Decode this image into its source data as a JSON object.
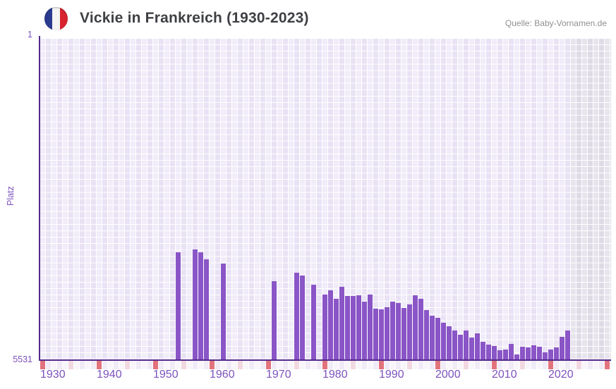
{
  "header": {
    "title": "Vickie in Frankreich (1930-2023)",
    "source": "Quelle: Baby-Vornamen.de"
  },
  "y_axis": {
    "label": "Platz",
    "top_tick": "1",
    "bottom_tick": "5531"
  },
  "chart_data": {
    "type": "bar",
    "title": "Vickie in Frankreich (1930-2023)",
    "xlabel": "",
    "ylabel": "Platz",
    "ylim": [
      1,
      5531
    ],
    "y_axis_inverted": true,
    "y_tick_labels": [
      "1",
      "5531"
    ],
    "x_tick_labels": [
      "1930",
      "1940",
      "1950",
      "1960",
      "1970",
      "1980",
      "1990",
      "2000",
      "2010",
      "2020"
    ],
    "x_rendered_range": [
      1930,
      2030
    ],
    "no_data_region_years": [
      2024,
      2030
    ],
    "decade_tick_years": [
      1930,
      1940,
      1950,
      1960,
      1970,
      1980,
      1990,
      2000,
      2010,
      2020,
      2030
    ],
    "half_decade_tick_years": [
      1935,
      1945,
      1955,
      1965,
      1975,
      1985,
      1995,
      2005,
      2015,
      2025
    ],
    "grid": true,
    "legend": "none",
    "series": [
      {
        "name": "Vickie",
        "points": [
          [
            1954,
            3680
          ],
          [
            1957,
            3635
          ],
          [
            1958,
            3685
          ],
          [
            1959,
            3805
          ],
          [
            1962,
            3880
          ],
          [
            1971,
            4180
          ],
          [
            1975,
            4035
          ],
          [
            1976,
            4085
          ],
          [
            1978,
            4240
          ],
          [
            1980,
            4410
          ],
          [
            1981,
            4340
          ],
          [
            1982,
            4485
          ],
          [
            1983,
            4280
          ],
          [
            1984,
            4435
          ],
          [
            1985,
            4435
          ],
          [
            1986,
            4425
          ],
          [
            1987,
            4535
          ],
          [
            1988,
            4410
          ],
          [
            1989,
            4655
          ],
          [
            1990,
            4670
          ],
          [
            1991,
            4630
          ],
          [
            1992,
            4535
          ],
          [
            1993,
            4560
          ],
          [
            1994,
            4645
          ],
          [
            1995,
            4585
          ],
          [
            1996,
            4425
          ],
          [
            1997,
            4485
          ],
          [
            1998,
            4680
          ],
          [
            1999,
            4775
          ],
          [
            2000,
            4815
          ],
          [
            2001,
            4900
          ],
          [
            2002,
            4960
          ],
          [
            2003,
            5035
          ],
          [
            2004,
            5105
          ],
          [
            2005,
            5035
          ],
          [
            2006,
            5155
          ],
          [
            2007,
            5080
          ],
          [
            2008,
            5225
          ],
          [
            2009,
            5275
          ],
          [
            2010,
            5300
          ],
          [
            2011,
            5375
          ],
          [
            2012,
            5360
          ],
          [
            2013,
            5265
          ],
          [
            2014,
            5445
          ],
          [
            2015,
            5310
          ],
          [
            2016,
            5325
          ],
          [
            2017,
            5290
          ],
          [
            2018,
            5310
          ],
          [
            2019,
            5410
          ],
          [
            2020,
            5360
          ],
          [
            2021,
            5325
          ],
          [
            2022,
            5140
          ],
          [
            2023,
            5035
          ]
        ]
      }
    ]
  },
  "colors": {
    "bar": "#8a55c6",
    "axis_line": "#522b8c",
    "axis_text_purple": "#7c52bd",
    "title_text": "#3e4044",
    "source_text": "#8f9093",
    "decade_tick_red": "#e2737d",
    "half_decade_tick_pink": "#f2d8e1",
    "grid_cell_light": "#f1ecf9",
    "grid_cell_dark": "#e9e2f4",
    "future_cell_light": "#e7e4ed",
    "future_cell_dark": "#dfdbe6",
    "flag_blue": "#2a3b8f",
    "flag_red": "#d8232e"
  }
}
